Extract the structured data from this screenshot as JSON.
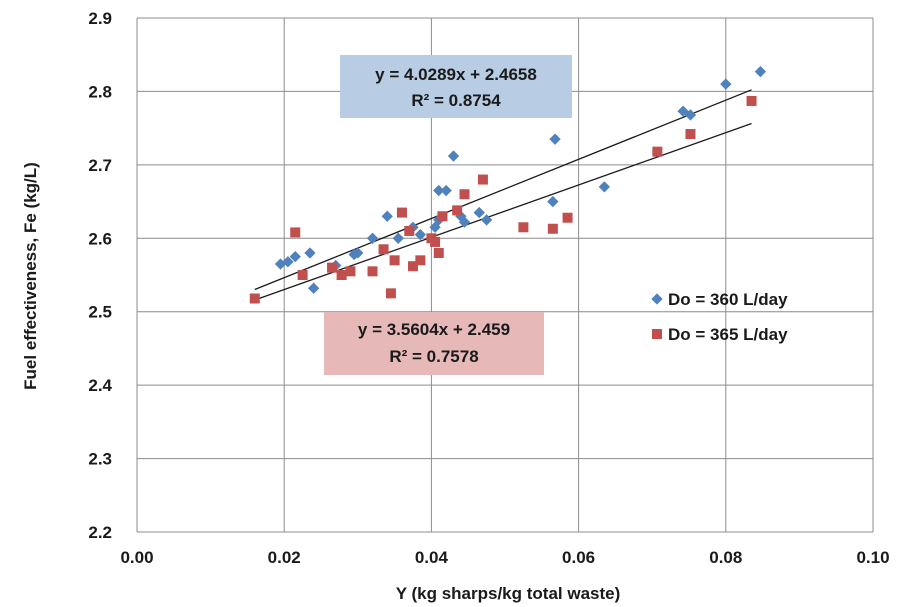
{
  "chart_data": {
    "type": "scatter",
    "xlabel": "Y (kg sharps/kg total waste)",
    "ylabel": "Fuel effectiveness, Fe (kg/L)",
    "xlim": [
      0.0,
      0.1
    ],
    "ylim": [
      2.2,
      2.9
    ],
    "x_ticks": [
      "0.00",
      "0.02",
      "0.04",
      "0.06",
      "0.08",
      "0.10"
    ],
    "y_ticks": [
      "2.2",
      "2.3",
      "2.4",
      "2.5",
      "2.6",
      "2.7",
      "2.8",
      "2.9"
    ],
    "grid": true,
    "legend_position": "right",
    "series": [
      {
        "name": "Do = 360 L/day",
        "marker": "diamond",
        "color": "#4f81bd",
        "points": [
          [
            0.0195,
            2.565
          ],
          [
            0.0205,
            2.568
          ],
          [
            0.0215,
            2.575
          ],
          [
            0.0235,
            2.58
          ],
          [
            0.024,
            2.532
          ],
          [
            0.027,
            2.563
          ],
          [
            0.0295,
            2.578
          ],
          [
            0.03,
            2.58
          ],
          [
            0.032,
            2.6
          ],
          [
            0.034,
            2.63
          ],
          [
            0.0355,
            2.6
          ],
          [
            0.0375,
            2.615
          ],
          [
            0.0385,
            2.605
          ],
          [
            0.0405,
            2.615
          ],
          [
            0.041,
            2.665
          ],
          [
            0.042,
            2.665
          ],
          [
            0.041,
            2.625
          ],
          [
            0.043,
            2.712
          ],
          [
            0.044,
            2.63
          ],
          [
            0.0445,
            2.622
          ],
          [
            0.0465,
            2.635
          ],
          [
            0.0475,
            2.625
          ],
          [
            0.0565,
            2.65
          ],
          [
            0.0568,
            2.735
          ],
          [
            0.0635,
            2.67
          ],
          [
            0.0742,
            2.773
          ],
          [
            0.0752,
            2.768
          ],
          [
            0.08,
            2.81
          ],
          [
            0.0847,
            2.827
          ]
        ],
        "trendline": {
          "slope": 4.0289,
          "intercept": 2.4658,
          "x_range": [
            0.016,
            0.0835
          ]
        },
        "equation": "y = 4.0289x + 2.4658",
        "r2": "R² = 0.8754",
        "label_bg": "#b8cce4"
      },
      {
        "name": "Do = 365 L/day",
        "marker": "square",
        "color": "#c0504d",
        "points": [
          [
            0.016,
            2.518
          ],
          [
            0.0215,
            2.608
          ],
          [
            0.0225,
            2.55
          ],
          [
            0.0265,
            2.56
          ],
          [
            0.0278,
            2.55
          ],
          [
            0.029,
            2.555
          ],
          [
            0.032,
            2.555
          ],
          [
            0.0335,
            2.585
          ],
          [
            0.0345,
            2.525
          ],
          [
            0.035,
            2.57
          ],
          [
            0.036,
            2.635
          ],
          [
            0.037,
            2.61
          ],
          [
            0.0375,
            2.562
          ],
          [
            0.0385,
            2.57
          ],
          [
            0.04,
            2.6
          ],
          [
            0.0405,
            2.595
          ],
          [
            0.041,
            2.58
          ],
          [
            0.0415,
            2.63
          ],
          [
            0.0435,
            2.638
          ],
          [
            0.0445,
            2.66
          ],
          [
            0.047,
            2.68
          ],
          [
            0.0525,
            2.615
          ],
          [
            0.0565,
            2.613
          ],
          [
            0.0585,
            2.628
          ],
          [
            0.0707,
            2.718
          ],
          [
            0.0752,
            2.742
          ],
          [
            0.0835,
            2.787
          ]
        ],
        "trendline": {
          "slope": 3.5604,
          "intercept": 2.459,
          "x_range": [
            0.016,
            0.0835
          ]
        },
        "equation": "y = 3.5604x + 2.459",
        "r2": "R² = 0.7578",
        "label_bg": "#e6b9b8"
      }
    ]
  }
}
